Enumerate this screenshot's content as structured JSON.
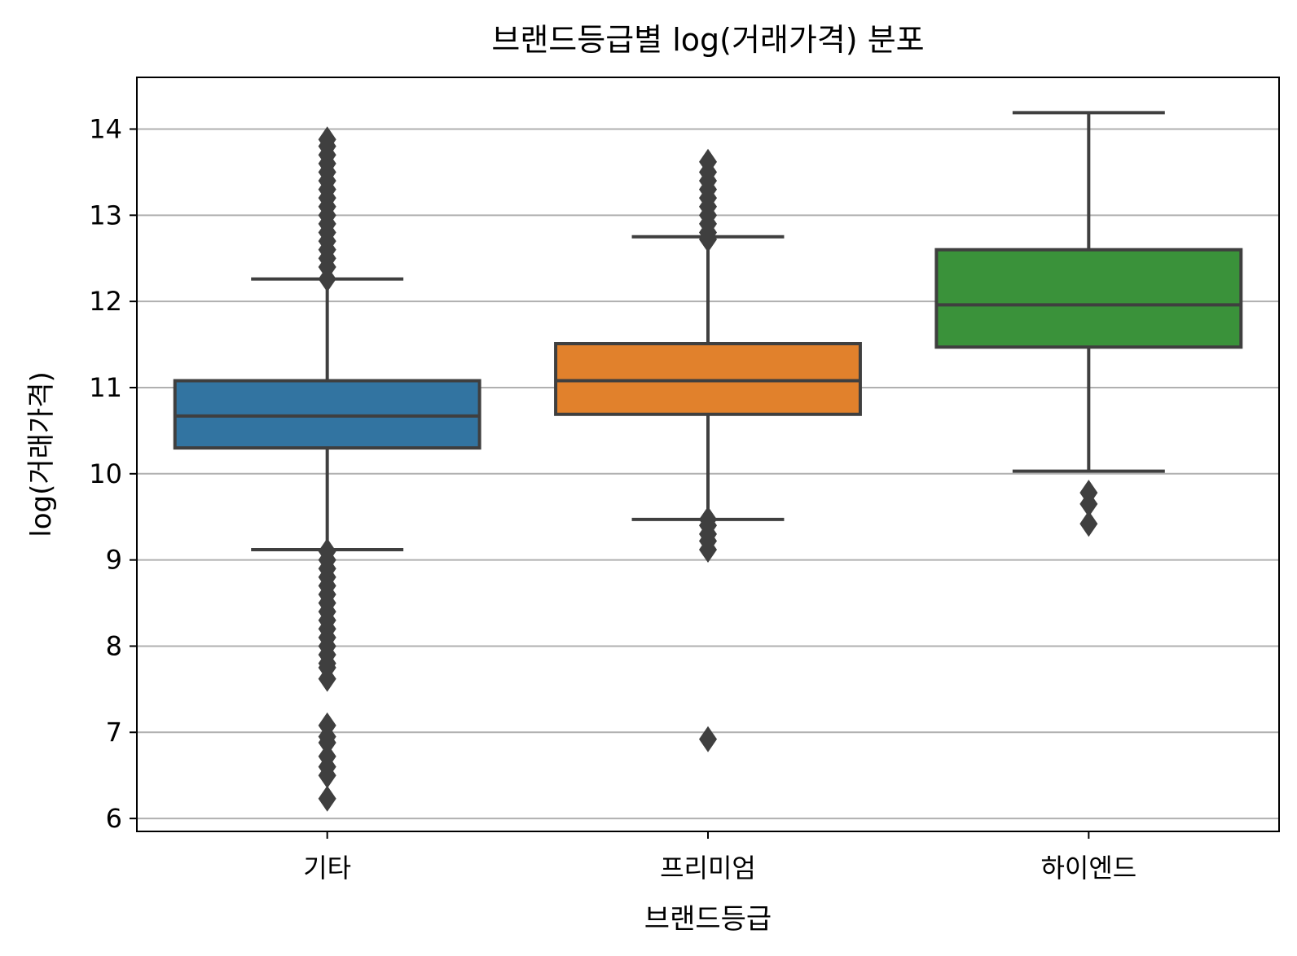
{
  "chart_data": {
    "type": "box",
    "title": "브랜드등급별 log(거래가격) 분포",
    "xlabel": "브랜드등급",
    "ylabel": "log(거래가격)",
    "ylim": [
      5.85,
      14.6
    ],
    "yticks": [
      6,
      7,
      8,
      9,
      10,
      11,
      12,
      13,
      14
    ],
    "grid": "horizontal",
    "categories": [
      "기타",
      "프리미엄",
      "하이엔드"
    ],
    "colors": [
      "#3274a1",
      "#e1812c",
      "#3a923a"
    ],
    "series": [
      {
        "category": "기타",
        "whisker_low": 9.12,
        "q1": 10.3,
        "median": 10.67,
        "q3": 11.08,
        "whisker_high": 12.26,
        "outliers_low": [
          9.1,
          9.0,
          8.9,
          8.8,
          8.7,
          8.6,
          8.5,
          8.4,
          8.3,
          8.2,
          8.1,
          8.0,
          7.9,
          7.8,
          7.75,
          7.62,
          7.08,
          6.95,
          6.88,
          6.72,
          6.6,
          6.5,
          6.23
        ],
        "outliers_high": [
          12.26,
          12.4,
          12.5,
          12.6,
          12.7,
          12.8,
          12.9,
          13.0,
          13.1,
          13.2,
          13.3,
          13.4,
          13.5,
          13.6,
          13.7,
          13.8,
          13.88
        ]
      },
      {
        "category": "프리미엄",
        "whisker_low": 9.47,
        "q1": 10.69,
        "median": 11.08,
        "q3": 11.51,
        "whisker_high": 12.75,
        "outliers_low": [
          9.47,
          9.4,
          9.3,
          9.22,
          9.12,
          6.92
        ],
        "outliers_high": [
          12.72,
          12.8,
          12.9,
          13.0,
          13.1,
          13.2,
          13.3,
          13.4,
          13.5,
          13.62
        ]
      },
      {
        "category": "하이엔드",
        "whisker_low": 10.03,
        "q1": 11.47,
        "median": 11.96,
        "q3": 12.6,
        "whisker_high": 14.19,
        "outliers_low": [
          9.78,
          9.65,
          9.42
        ],
        "outliers_high": []
      }
    ]
  }
}
